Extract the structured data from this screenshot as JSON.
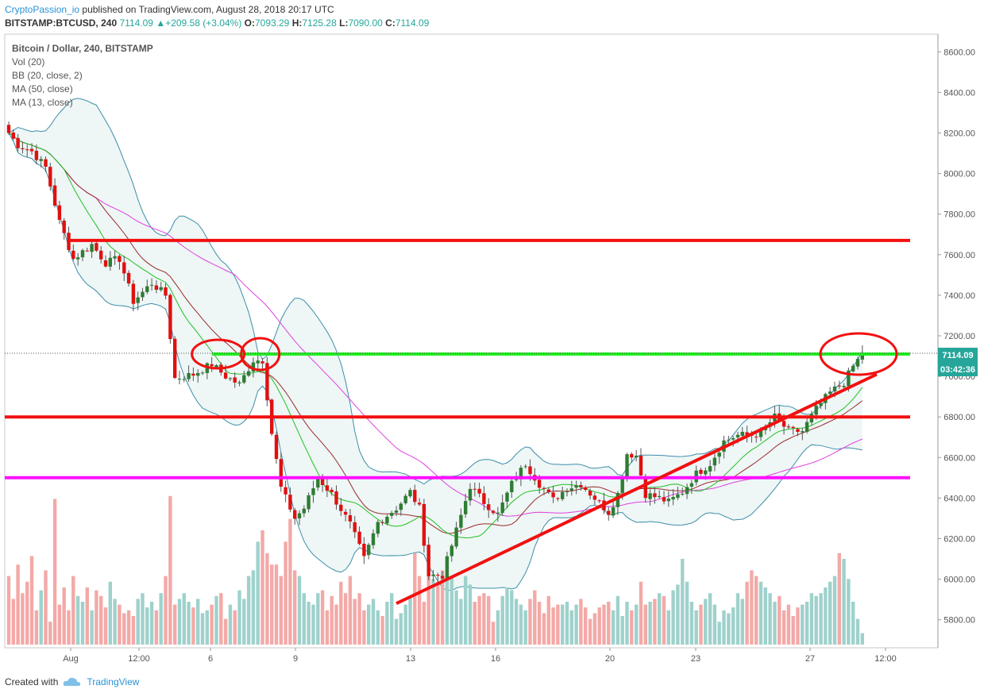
{
  "header": {
    "author": "CryptoPassion_io",
    "published": " published on TradingView.com, August 28, 2018 20:17 UTC"
  },
  "symbol_line": {
    "symbol": "BITSTAMP:BTCUSD, 240",
    "last": "7114.09",
    "change": "+209.58 (+3.04%)",
    "o_label": "O:",
    "o_val": "7093.29",
    "h_label": "H:",
    "h_val": "7125.28",
    "l_label": "L:",
    "l_val": "7090.00",
    "c_label": "C:",
    "c_val": "7114.09"
  },
  "legend": {
    "title": "Bitcoin / Dollar, 240, BITSTAMP",
    "items": [
      "Vol (20)",
      "BB (20, close, 2)",
      "MA (50, close)",
      "MA (13, close)"
    ]
  },
  "price_badge": "7114.09",
  "time_badge": "03:42:36",
  "footer": {
    "created_with": "Created with",
    "brand": "TradingView"
  },
  "colors": {
    "up": "#26a69a",
    "down": "#ef5350",
    "bb": "#3c8ea8",
    "bb_fill": "#eaf4f4",
    "ma50": "#e040e0",
    "ma13_green": "#22c022",
    "ma13_brown": "#9c2a2a",
    "red_line": "#f21010",
    "green_line": "#22ee22",
    "magenta_line": "#ff10ff"
  },
  "chart_data": {
    "type": "candlestick",
    "ylim": [
      5740,
      8660
    ],
    "y_ticks": [
      5800,
      6000,
      6200,
      6400,
      6600,
      6800,
      7000,
      7200,
      7400,
      7600,
      7800,
      8000,
      8200,
      8400,
      8600
    ],
    "x_tick_labels": [
      "Aug",
      "12:00",
      "6",
      "9",
      "13",
      "16",
      "20",
      "23",
      "27",
      "12:00"
    ],
    "horizontal_levels": [
      {
        "kind": "resistance",
        "price": 7670,
        "color": "red"
      },
      {
        "kind": "resistance",
        "price": 7110,
        "color": "green"
      },
      {
        "kind": "support",
        "price": 6800,
        "color": "red"
      },
      {
        "kind": "support",
        "price": 6500,
        "color": "magenta"
      }
    ],
    "trendline": {
      "from_price": 5880,
      "to_price": 7010
    },
    "anchors": [
      [
        0,
        8200
      ],
      [
        2,
        8140
      ],
      [
        5,
        8110
      ],
      [
        8,
        8030
      ],
      [
        11,
        7760
      ],
      [
        14,
        7580
      ],
      [
        18,
        7650
      ],
      [
        21,
        7560
      ],
      [
        24,
        7580
      ],
      [
        27,
        7370
      ],
      [
        31,
        7460
      ],
      [
        34,
        7400
      ],
      [
        36,
        6990
      ],
      [
        40,
        7010
      ],
      [
        44,
        7060
      ],
      [
        47,
        7000
      ],
      [
        50,
        6960
      ],
      [
        53,
        7080
      ],
      [
        55,
        7080
      ],
      [
        57,
        6720
      ],
      [
        59,
        6450
      ],
      [
        62,
        6300
      ],
      [
        64,
        6350
      ],
      [
        67,
        6500
      ],
      [
        70,
        6420
      ],
      [
        74,
        6270
      ],
      [
        77,
        6100
      ],
      [
        80,
        6280
      ],
      [
        84,
        6350
      ],
      [
        87,
        6430
      ],
      [
        89,
        6350
      ],
      [
        91,
        6020
      ],
      [
        94,
        6020
      ],
      [
        97,
        6240
      ],
      [
        100,
        6460
      ],
      [
        103,
        6380
      ],
      [
        106,
        6320
      ],
      [
        109,
        6470
      ],
      [
        112,
        6570
      ],
      [
        115,
        6470
      ],
      [
        118,
        6390
      ],
      [
        121,
        6450
      ],
      [
        124,
        6470
      ],
      [
        127,
        6400
      ],
      [
        130,
        6330
      ],
      [
        132,
        6420
      ],
      [
        134,
        6620
      ],
      [
        136,
        6610
      ],
      [
        138,
        6420
      ],
      [
        141,
        6400
      ],
      [
        143,
        6380
      ],
      [
        146,
        6430
      ],
      [
        149,
        6520
      ],
      [
        152,
        6570
      ],
      [
        155,
        6680
      ],
      [
        158,
        6710
      ],
      [
        161,
        6710
      ],
      [
        163,
        6720
      ],
      [
        166,
        6800
      ],
      [
        169,
        6730
      ],
      [
        172,
        6730
      ],
      [
        175,
        6840
      ],
      [
        178,
        6920
      ],
      [
        181,
        6970
      ],
      [
        183,
        7050
      ],
      [
        185,
        7110
      ]
    ],
    "volume": [
      120,
      80,
      140,
      90,
      110,
      155,
      60,
      95,
      130,
      40,
      255,
      70,
      100,
      60,
      120,
      85,
      75,
      100,
      60,
      95,
      85,
      65,
      110,
      80,
      70,
      55,
      60,
      50,
      80,
      90,
      65,
      75,
      60,
      90,
      120,
      260,
      70,
      80,
      90,
      75,
      65,
      80,
      55,
      60,
      70,
      85,
      90,
      45,
      70,
      60,
      95,
      80,
      120,
      130,
      180,
      200,
      160,
      140,
      140,
      120,
      180,
      220,
      130,
      120,
      90,
      75,
      70,
      90,
      95,
      60,
      85,
      70,
      110,
      90,
      120,
      80,
      90,
      60,
      70,
      80,
      60,
      50,
      75,
      90,
      45,
      55,
      70,
      85,
      160,
      120,
      75,
      130,
      115,
      110,
      130,
      120,
      120,
      95,
      80,
      120,
      105,
      75,
      85,
      90,
      85,
      40,
      60,
      85,
      100,
      95,
      80,
      70,
      60,
      80,
      95,
      75,
      55,
      85,
      65,
      70,
      70,
      75,
      60,
      70,
      80,
      65,
      45,
      55,
      65,
      70,
      75,
      60,
      85,
      50,
      75,
      60,
      70,
      110,
      70,
      75,
      80,
      90,
      85,
      60,
      95,
      105,
      150,
      110,
      75,
      60,
      70,
      80,
      90,
      70,
      40,
      60,
      55,
      65,
      90,
      80,
      110,
      130,
      120,
      110,
      100,
      90,
      75,
      85,
      60,
      70,
      50,
      65,
      70,
      75,
      90,
      85,
      90,
      100,
      110,
      120,
      160,
      150,
      115,
      75,
      45,
      20
    ]
  }
}
